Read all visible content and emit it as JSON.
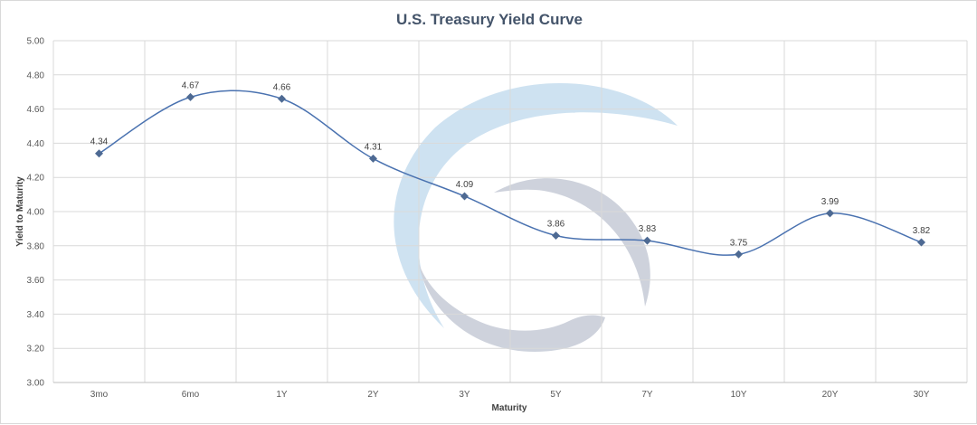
{
  "chart_data": {
    "type": "line",
    "title": "U.S. Treasury Yield Curve",
    "xlabel": "Maturity",
    "ylabel": "Yield to Maturity",
    "categories": [
      "3mo",
      "6mo",
      "1Y",
      "2Y",
      "3Y",
      "5Y",
      "7Y",
      "10Y",
      "20Y",
      "30Y"
    ],
    "series": [
      {
        "values": [
          4.34,
          4.67,
          4.66,
          4.31,
          4.09,
          3.86,
          3.83,
          3.75,
          3.99,
          3.82
        ],
        "color": "#4a72b0"
      }
    ],
    "data_labels": [
      "4.34",
      "4.67",
      "4.66",
      "4.31",
      "4.09",
      "3.86",
      "3.83",
      "3.75",
      "3.99",
      "3.82"
    ],
    "ylim": [
      3.0,
      5.0
    ],
    "y_ticks": [
      "3.00",
      "3.20",
      "3.40",
      "3.60",
      "3.80",
      "4.00",
      "4.20",
      "4.40",
      "4.60",
      "4.80",
      "5.00"
    ],
    "grid": true,
    "smooth": true,
    "legend": "none",
    "marker": "diamond",
    "marker_color": "#4e6a93",
    "gridline_color": "#d9d9d9",
    "watermark": "logo"
  }
}
